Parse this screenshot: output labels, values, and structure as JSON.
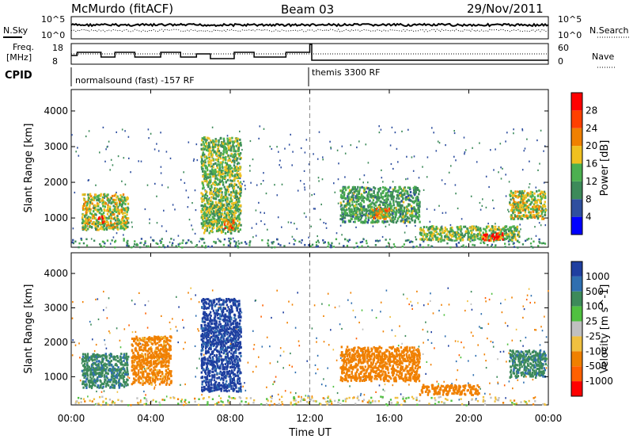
{
  "header": {
    "station": "McMurdo (fitACF)",
    "beam": "Beam 03",
    "date": "29/Nov/2011"
  },
  "top_panels": {
    "nsky_label": "N.Sky",
    "nsearch_label": "N.Search",
    "noise_ticks": [
      "10^5",
      "10^0"
    ],
    "freq_label_1": "Freq.",
    "freq_label_2": "[MHz]",
    "freq_ticks": [
      "18",
      "8"
    ],
    "nave_label": "Nave",
    "nave_ticks": [
      "60",
      "0"
    ],
    "cpid_label": "CPID",
    "cpid_segments": [
      "normalsound (fast) -157 RF",
      "themis 3300 RF"
    ]
  },
  "colors": {
    "power_scale": [
      "#0000ff",
      "#2f4f9f",
      "#3d8a5a",
      "#4cb050",
      "#f0c020",
      "#f08000",
      "#ff4000",
      "#ff0000"
    ],
    "velocity_scale": [
      "#1f3fa0",
      "#2f6fb0",
      "#3d8a5a",
      "#50c040",
      "#c0c0c0",
      "#f0c040",
      "#f08000",
      "#ff6000",
      "#ff0000"
    ]
  },
  "chart_data": [
    {
      "type": "heatmap",
      "name": "power",
      "xlabel": "",
      "ylabel": "Slant Range [km]",
      "xlim": [
        "00:00",
        "24:00"
      ],
      "ylim": [
        180,
        4600
      ],
      "y_ticks": [
        "1000",
        "2000",
        "3000",
        "4000"
      ],
      "colorbar_label": "Power [dB]",
      "colorbar_ticks": [
        "28",
        "24",
        "20",
        "16",
        "12",
        "8",
        "4"
      ],
      "echo_regions": [
        {
          "t_start": "00:30",
          "t_end": "02:50",
          "range_km": [
            700,
            1700
          ],
          "power_db": 16
        },
        {
          "t_start": "01:20",
          "t_end": "01:40",
          "range_km": [
            900,
            1100
          ],
          "power_db": 26
        },
        {
          "t_start": "06:30",
          "t_end": "08:30",
          "range_km": [
            600,
            3300
          ],
          "power_db": 14
        },
        {
          "t_start": "07:40",
          "t_end": "08:10",
          "range_km": [
            700,
            1000
          ],
          "power_db": 22
        },
        {
          "t_start": "13:30",
          "t_end": "17:30",
          "range_km": [
            900,
            1900
          ],
          "power_db": 12
        },
        {
          "t_start": "15:00",
          "t_end": "16:00",
          "range_km": [
            1000,
            1300
          ],
          "power_db": 18
        },
        {
          "t_start": "17:30",
          "t_end": "22:30",
          "range_km": [
            400,
            800
          ],
          "power_db": 14
        },
        {
          "t_start": "20:40",
          "t_end": "21:40",
          "range_km": [
            400,
            600
          ],
          "power_db": 28
        },
        {
          "t_start": "22:00",
          "t_end": "23:50",
          "range_km": [
            1000,
            1800
          ],
          "power_db": 16
        }
      ]
    },
    {
      "type": "heatmap",
      "name": "velocity",
      "xlabel": "Time UT",
      "ylabel": "Slant Range [km]",
      "xlim": [
        "00:00",
        "24:00"
      ],
      "ylim": [
        180,
        4600
      ],
      "x_ticks": [
        "00:00",
        "04:00",
        "08:00",
        "12:00",
        "16:00",
        "20:00",
        "00:00"
      ],
      "y_ticks": [
        "1000",
        "2000",
        "3000",
        "4000"
      ],
      "colorbar_label": "Velocity [m s^-1]",
      "colorbar_ticks": [
        "1000",
        "500",
        "100",
        "25",
        "-25",
        "-100",
        "-500",
        "-1000"
      ],
      "echo_regions": [
        {
          "t_start": "00:30",
          "t_end": "02:50",
          "range_km": [
            700,
            1700
          ],
          "velocity_ms": 200
        },
        {
          "t_start": "03:00",
          "t_end": "05:00",
          "range_km": [
            800,
            2200
          ],
          "velocity_ms": -150
        },
        {
          "t_start": "06:30",
          "t_end": "08:30",
          "range_km": [
            600,
            3300
          ],
          "velocity_ms": 700
        },
        {
          "t_start": "13:30",
          "t_end": "17:30",
          "range_km": [
            900,
            1900
          ],
          "velocity_ms": -200
        },
        {
          "t_start": "17:30",
          "t_end": "20:30",
          "range_km": [
            500,
            800
          ],
          "velocity_ms": -300
        },
        {
          "t_start": "22:00",
          "t_end": "23:50",
          "range_km": [
            1000,
            1800
          ],
          "velocity_ms": 200
        }
      ]
    }
  ]
}
